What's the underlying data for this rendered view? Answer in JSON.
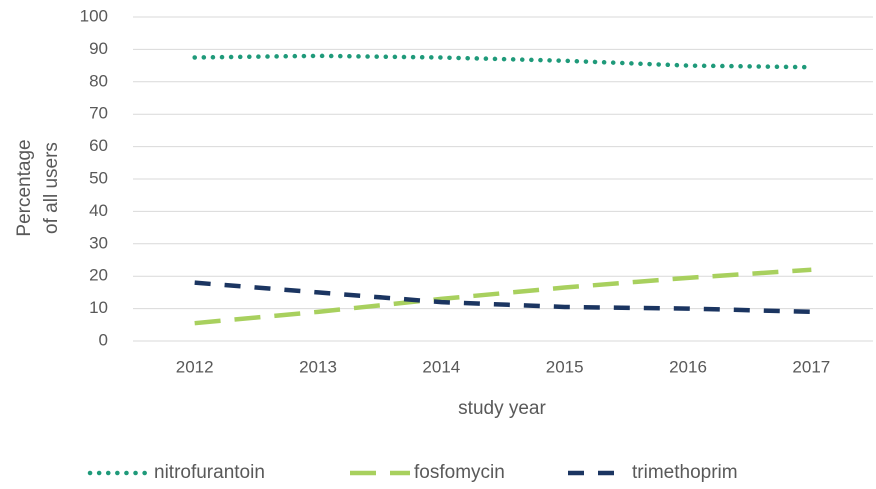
{
  "chart_data": {
    "type": "line",
    "categories": [
      "2012",
      "2013",
      "2014",
      "2015",
      "2016",
      "2017"
    ],
    "series": [
      {
        "name": "nitrofurantoin",
        "color": "#1f9a7a",
        "dash": "dot",
        "values": [
          87.5,
          88,
          87.5,
          86.5,
          85,
          84.5
        ]
      },
      {
        "name": "fosfomycin",
        "color": "#a8d05e",
        "dash": "long",
        "values": [
          5.5,
          9,
          13,
          16.5,
          19.5,
          22
        ]
      },
      {
        "name": "trimethoprim",
        "color": "#1b3561",
        "dash": "dash",
        "values": [
          18,
          15,
          12,
          10.5,
          10,
          9
        ]
      }
    ],
    "ylim": [
      0,
      100
    ],
    "yticks": [
      0,
      10,
      20,
      30,
      40,
      50,
      60,
      70,
      80,
      90,
      100
    ],
    "xlabel": "study year",
    "ylabel": [
      "Percentage",
      "of all users"
    ],
    "grid": true,
    "legend": "bottom"
  }
}
